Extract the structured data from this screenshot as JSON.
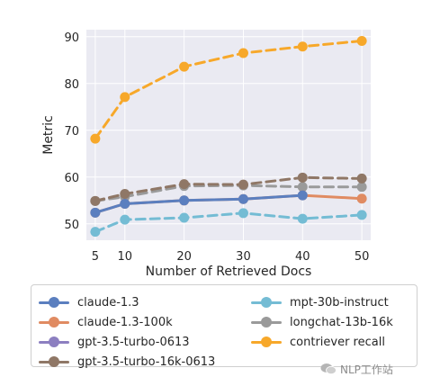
{
  "chart_data": {
    "type": "line",
    "title": "",
    "xlabel": "Number of Retrieved Docs",
    "ylabel": "Metric",
    "x": [
      5,
      10,
      20,
      30,
      40,
      50
    ],
    "xticks": [
      "5",
      "10",
      "20",
      "30",
      "40",
      "50"
    ],
    "yticks": [
      "50",
      "60",
      "70",
      "80",
      "90"
    ],
    "xlim": [
      3.5,
      51.5
    ],
    "ylim": [
      46.5,
      91.5
    ],
    "grid": true,
    "legend_position": "below",
    "series": [
      {
        "name": "claude-1.3",
        "color": "#5b7fbf",
        "values": [
          52.4,
          54.3,
          55.0,
          55.3,
          56.1,
          null
        ]
      },
      {
        "name": "claude-1.3-100k",
        "color": "#e08b62",
        "values": [
          52.4,
          54.3,
          55.0,
          55.3,
          56.1,
          55.4
        ]
      },
      {
        "name": "gpt-3.5-turbo-0613",
        "color": "#8c7fc0",
        "values": [
          null,
          null,
          null,
          null,
          null,
          null
        ]
      },
      {
        "name": "gpt-3.5-turbo-16k-0613",
        "color": "#8f7766",
        "values": [
          54.9,
          56.4,
          58.5,
          58.4,
          59.9,
          59.7
        ]
      },
      {
        "name": "mpt-30b-instruct",
        "color": "#74bcd4",
        "values": [
          48.3,
          50.9,
          51.3,
          52.3,
          51.1,
          51.9
        ]
      },
      {
        "name": "longchat-13b-16k",
        "color": "#9a9a9a",
        "values": [
          54.9,
          55.8,
          58.1,
          58.2,
          57.9,
          57.9
        ]
      },
      {
        "name": "contriever recall",
        "color": "#f7a82a",
        "values": [
          68.2,
          77.1,
          83.6,
          86.5,
          87.9,
          89.1
        ]
      }
    ]
  },
  "legend": {
    "items": [
      {
        "label": "claude-1.3",
        "color": "#5b7fbf"
      },
      {
        "label": "claude-1.3-100k",
        "color": "#e08b62"
      },
      {
        "label": "gpt-3.5-turbo-0613",
        "color": "#8c7fc0"
      },
      {
        "label": "gpt-3.5-turbo-16k-0613",
        "color": "#8f7766"
      },
      {
        "label": "mpt-30b-instruct",
        "color": "#74bcd4"
      },
      {
        "label": "longchat-13b-16k",
        "color": "#9a9a9a"
      },
      {
        "label": "contriever recall",
        "color": "#f7a82a"
      }
    ]
  },
  "watermark": {
    "text": "NLP工作站",
    "icon": "wechat-icon"
  }
}
